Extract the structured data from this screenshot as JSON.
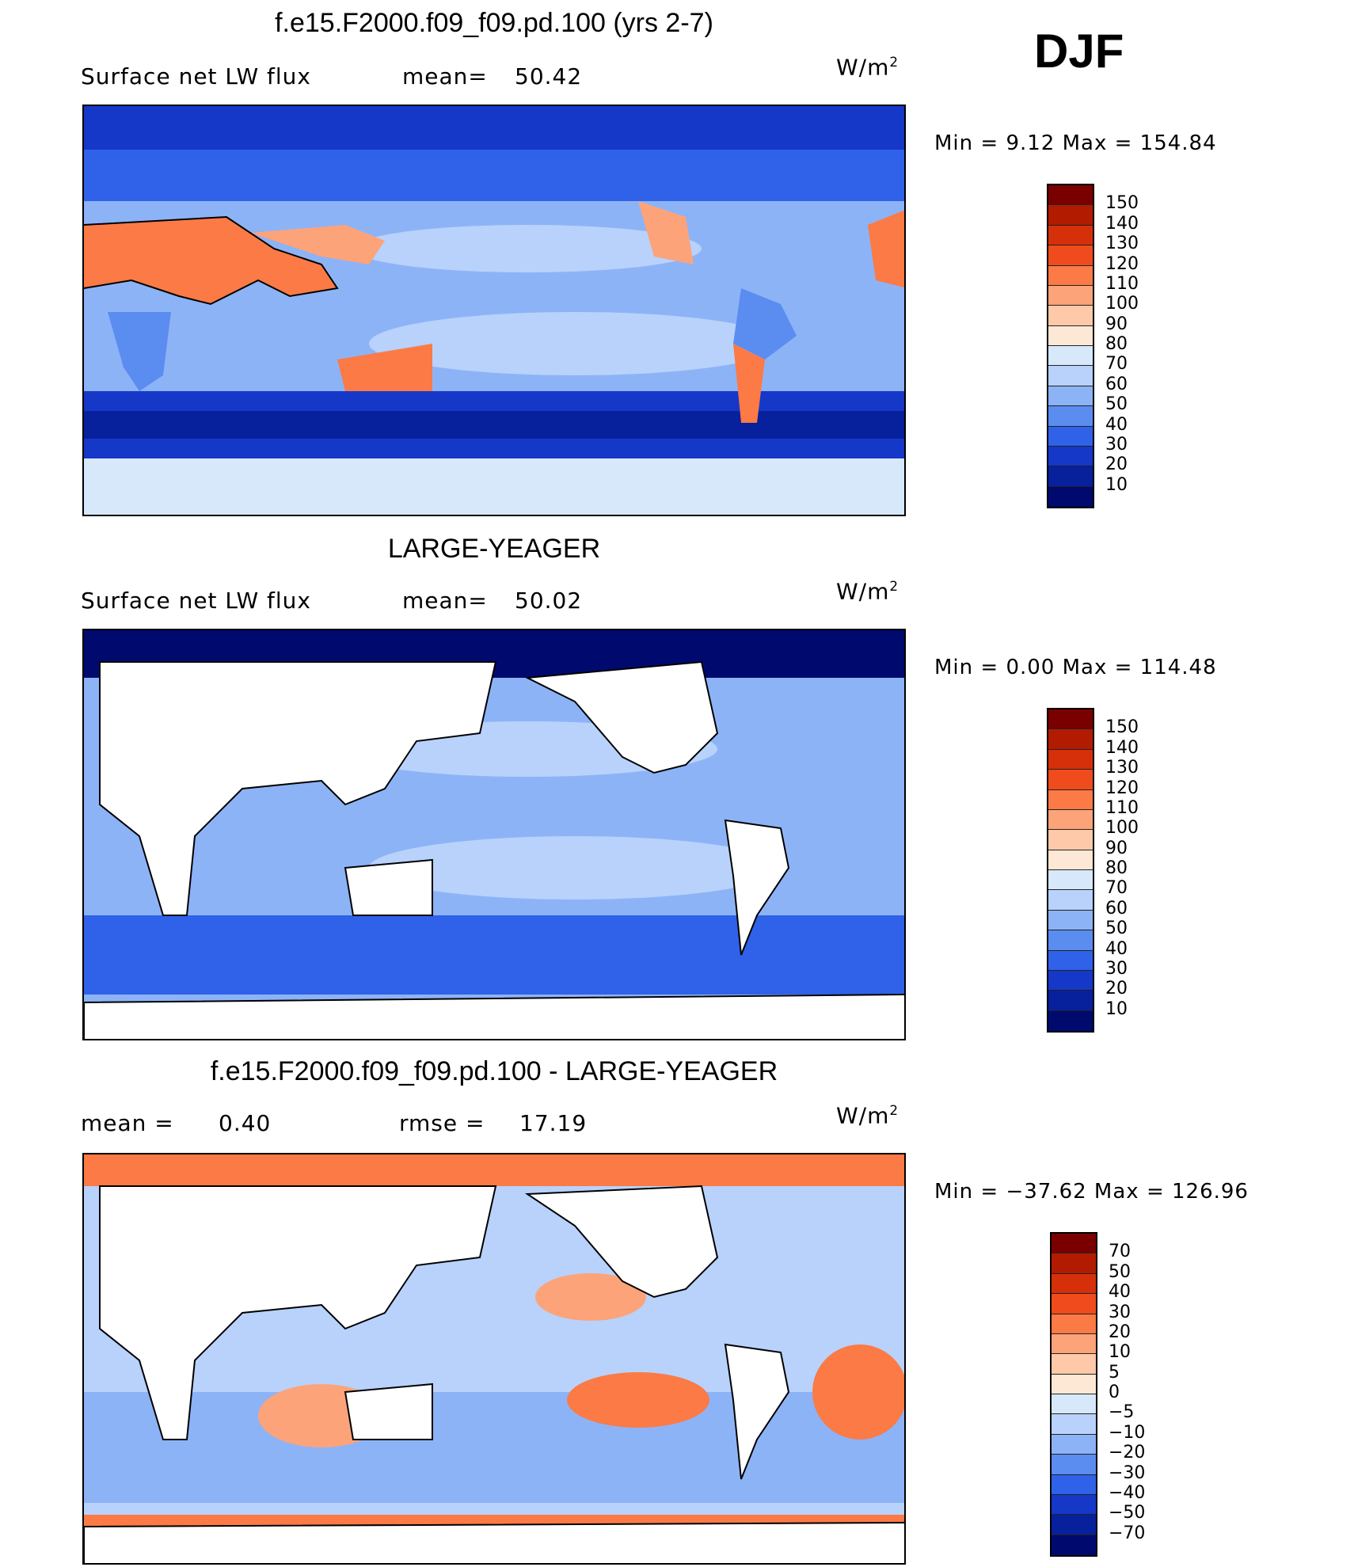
{
  "season": "DJF",
  "panels": [
    {
      "title": "f.e15.F2000.f09_f09.pd.100 (yrs 2-7)",
      "left_label": "Surface net LW flux",
      "stat1_label": "mean=",
      "stat1_value": "50.42",
      "stat2_label": "",
      "stat2_value": "",
      "units_base": "W/m",
      "units_exp": "2",
      "min_max": "Min =    9.12 Max = 154.84",
      "colorbar_levels": [
        "150",
        "140",
        "130",
        "120",
        "110",
        "100",
        "90",
        "80",
        "70",
        "60",
        "50",
        "40",
        "30",
        "20",
        "10"
      ],
      "colorbar_colors": [
        "#7a0000",
        "#b31b00",
        "#d6300a",
        "#f04b1c",
        "#fb7a45",
        "#fca37a",
        "#fdc9a8",
        "#fde8d6",
        "#d8e8fb",
        "#b8d2fb",
        "#8db3f7",
        "#5b8cf0",
        "#2f62e8",
        "#1538c8",
        "#07209c",
        "#000a6e"
      ]
    },
    {
      "title": "LARGE-YEAGER",
      "left_label": "Surface net LW flux",
      "stat1_label": "mean=",
      "stat1_value": "50.02",
      "stat2_label": "",
      "stat2_value": "",
      "units_base": "W/m",
      "units_exp": "2",
      "min_max": "Min =    0.00 Max = 114.48",
      "colorbar_levels": [
        "150",
        "140",
        "130",
        "120",
        "110",
        "100",
        "90",
        "80",
        "70",
        "60",
        "50",
        "40",
        "30",
        "20",
        "10"
      ],
      "colorbar_colors": [
        "#7a0000",
        "#b31b00",
        "#d6300a",
        "#f04b1c",
        "#fb7a45",
        "#fca37a",
        "#fdc9a8",
        "#fde8d6",
        "#d8e8fb",
        "#b8d2fb",
        "#8db3f7",
        "#5b8cf0",
        "#2f62e8",
        "#1538c8",
        "#07209c",
        "#000a6e"
      ]
    },
    {
      "title": "f.e15.F2000.f09_f09.pd.100 - LARGE-YEAGER",
      "left_label": "mean =",
      "stat1_label": "0.40",
      "stat1_value": "",
      "stat2_label": "rmse =",
      "stat2_value": "17.19",
      "units_base": "W/m",
      "units_exp": "2",
      "min_max": "Min = −37.62 Max = 126.96",
      "colorbar_levels": [
        "70",
        "50",
        "40",
        "30",
        "20",
        "10",
        "5",
        "0",
        "−5",
        "−10",
        "−20",
        "−30",
        "−40",
        "−50",
        "−70"
      ],
      "colorbar_colors": [
        "#7a0000",
        "#b31b00",
        "#d6300a",
        "#f04b1c",
        "#fb7a45",
        "#fca37a",
        "#fdc9a8",
        "#fde8d6",
        "#d8e8fb",
        "#b8d2fb",
        "#8db3f7",
        "#5b8cf0",
        "#2f62e8",
        "#1538c8",
        "#07209c",
        "#000a6e"
      ]
    }
  ]
}
